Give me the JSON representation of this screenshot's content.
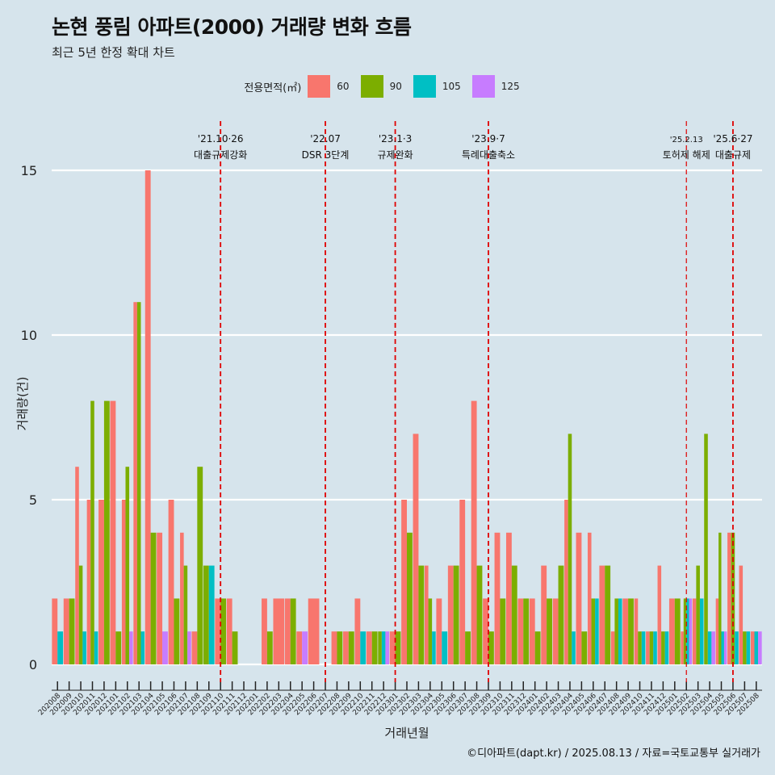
{
  "title": "논현 풍림 아파트(2000) 거래량 변화 흐름",
  "subtitle": "최근 5년 한정 확대 차트",
  "caption": "©디아파트(dapt.kr) / 2025.08.13 / 자료=국토교통부 실거래가",
  "legend": {
    "title": "전용면적(㎡)",
    "items": [
      {
        "label": "60",
        "color": "#f8766d"
      },
      {
        "label": "90",
        "color": "#7cae00"
      },
      {
        "label": "105",
        "color": "#00bfc4"
      },
      {
        "label": "125",
        "color": "#c77cff"
      }
    ]
  },
  "chart_data": {
    "type": "bar",
    "xlabel": "거래년월",
    "ylabel": "거래량(건)",
    "ylim": [
      0,
      15
    ],
    "yticks": [
      0,
      5,
      10,
      15
    ],
    "categories": [
      "202008",
      "202009",
      "202010",
      "202011",
      "202012",
      "202101",
      "202102",
      "202103",
      "202104",
      "202105",
      "202106",
      "202107",
      "202108",
      "202109",
      "202110",
      "202111",
      "202112",
      "202201",
      "202202",
      "202203",
      "202204",
      "202205",
      "202206",
      "202207",
      "202208",
      "202209",
      "202210",
      "202211",
      "202212",
      "202301",
      "202302",
      "202303",
      "202304",
      "202305",
      "202306",
      "202307",
      "202308",
      "202309",
      "202310",
      "202311",
      "202312",
      "202401",
      "202402",
      "202403",
      "202404",
      "202405",
      "202406",
      "202407",
      "202408",
      "202409",
      "202410",
      "202411",
      "202412",
      "202501",
      "202502",
      "202503",
      "202504",
      "202505",
      "202506",
      "202507",
      "202508"
    ],
    "series": [
      {
        "name": "60",
        "color": "#f8766d",
        "values": [
          2,
          2,
          6,
          5,
          5,
          8,
          5,
          11,
          15,
          4,
          5,
          4,
          1,
          0,
          2,
          2,
          0,
          0,
          2,
          2,
          2,
          1,
          2,
          0,
          1,
          1,
          2,
          1,
          0,
          1,
          5,
          7,
          3,
          2,
          3,
          5,
          8,
          2,
          4,
          4,
          2,
          2,
          3,
          2,
          5,
          4,
          4,
          3,
          1,
          2,
          2,
          1,
          3,
          2,
          1,
          2,
          0,
          2,
          4,
          3,
          1
        ]
      },
      {
        "name": "90",
        "color": "#7cae00",
        "values": [
          0,
          2,
          3,
          8,
          8,
          1,
          6,
          11,
          4,
          0,
          2,
          3,
          6,
          3,
          2,
          1,
          0,
          0,
          1,
          0,
          2,
          0,
          0,
          0,
          1,
          1,
          0,
          1,
          1,
          1,
          4,
          3,
          2,
          0,
          3,
          1,
          3,
          1,
          2,
          3,
          2,
          1,
          2,
          3,
          7,
          1,
          2,
          3,
          2,
          2,
          1,
          1,
          1,
          2,
          2,
          3,
          7,
          4,
          4,
          1,
          0
        ]
      },
      {
        "name": "105",
        "color": "#00bfc4",
        "values": [
          1,
          0,
          1,
          1,
          0,
          0,
          0,
          1,
          0,
          0,
          0,
          0,
          0,
          3,
          0,
          0,
          0,
          0,
          0,
          0,
          0,
          0,
          0,
          0,
          0,
          0,
          1,
          0,
          1,
          0,
          0,
          0,
          1,
          1,
          0,
          0,
          0,
          0,
          0,
          0,
          0,
          0,
          0,
          0,
          1,
          0,
          2,
          0,
          2,
          0,
          1,
          1,
          1,
          0,
          2,
          2,
          1,
          1,
          1,
          1,
          1
        ]
      },
      {
        "name": "125",
        "color": "#c77cff",
        "values": [
          0,
          0,
          0,
          0,
          0,
          0,
          1,
          0,
          0,
          1,
          0,
          1,
          0,
          0,
          0,
          0,
          0,
          0,
          0,
          0,
          0,
          1,
          0,
          0,
          0,
          0,
          0,
          0,
          1,
          0,
          0,
          0,
          0,
          0,
          0,
          0,
          0,
          0,
          0,
          0,
          0,
          0,
          0,
          0,
          0,
          0,
          0,
          0,
          0,
          0,
          0,
          0,
          0,
          0,
          2,
          0,
          1,
          1,
          0,
          0,
          1
        ]
      }
    ],
    "annotations": [
      {
        "date": "'21.10·26",
        "label": "대출규제강화",
        "month": "202110",
        "style": "bold"
      },
      {
        "date": "'22.07",
        "label": "DSR 3단계",
        "month": "202207",
        "style": "bold"
      },
      {
        "date": "'23.1·3",
        "label": "규제완화",
        "month": "202301",
        "style": "bold"
      },
      {
        "date": "'23.9·7",
        "label": "특례대출축소",
        "month": "202309",
        "style": "bold"
      },
      {
        "date": "'25.2.13",
        "label": "토허제 해제",
        "month": "202502",
        "style": "thin"
      },
      {
        "date": "'25.6·27",
        "label": "대출규제",
        "month": "202506",
        "style": "bold"
      }
    ],
    "grid": true
  }
}
